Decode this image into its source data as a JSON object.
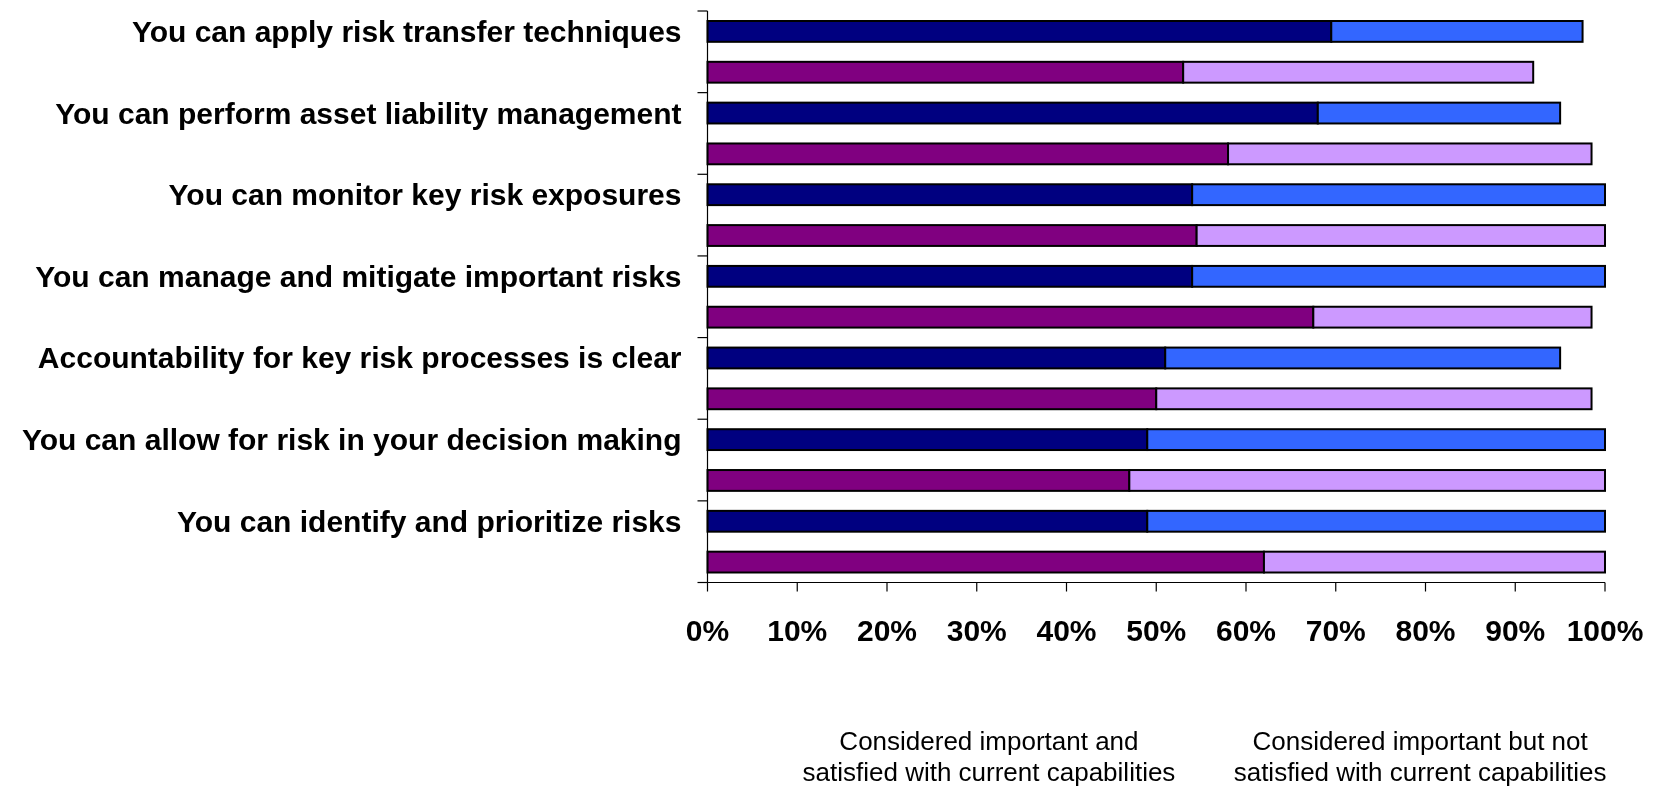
{
  "chart_data": {
    "type": "bar",
    "orientation": "horizontal",
    "stacked": true,
    "categories": [
      "You can apply risk transfer techniques",
      null,
      "You can perform asset liability management",
      null,
      "You can monitor key risk exposures",
      null,
      "You can manage and mitigate important risks",
      null,
      "Accountability for key risk processes is clear",
      null,
      "You can allow for risk in your decision making",
      null,
      "You can identify and prioritize risks",
      null
    ],
    "series": [
      {
        "colors": [
          "#000080",
          "#800080",
          "#000080",
          "#800080",
          "#000080",
          "#800080",
          "#000080",
          "#800080",
          "#000080",
          "#800080",
          "#000080",
          "#800080",
          "#000080",
          "#800080"
        ],
        "values": [
          69.5,
          53,
          68,
          58,
          54,
          54.5,
          54,
          67.5,
          51,
          50,
          49,
          47,
          49,
          62
        ]
      },
      {
        "colors": [
          "#3366ff",
          "#cc99ff",
          "#3366ff",
          "#cc99ff",
          "#3366ff",
          "#cc99ff",
          "#3366ff",
          "#cc99ff",
          "#3366ff",
          "#cc99ff",
          "#3366ff",
          "#cc99ff",
          "#3366ff",
          "#cc99ff"
        ],
        "values": [
          28,
          39,
          27,
          40.5,
          46,
          45.5,
          46,
          31,
          44,
          48.5,
          51,
          53,
          51,
          38
        ]
      }
    ],
    "xlim": [
      0,
      100
    ],
    "xticks": [
      {
        "value": 0,
        "label": "0%"
      },
      {
        "value": 10,
        "label": "10%"
      },
      {
        "value": 20,
        "label": "20%"
      },
      {
        "value": 30,
        "label": "30%"
      },
      {
        "value": 40,
        "label": "40%"
      },
      {
        "value": 50,
        "label": "50%"
      },
      {
        "value": 60,
        "label": "60%"
      },
      {
        "value": 70,
        "label": "70%"
      },
      {
        "value": 80,
        "label": "80%"
      },
      {
        "value": 90,
        "label": "90%"
      },
      {
        "value": 100,
        "label": "100%"
      }
    ],
    "annotations": [
      "Considered important and satisfied with current capabilities",
      "Considered important but not satisfied with current capabilities"
    ]
  }
}
